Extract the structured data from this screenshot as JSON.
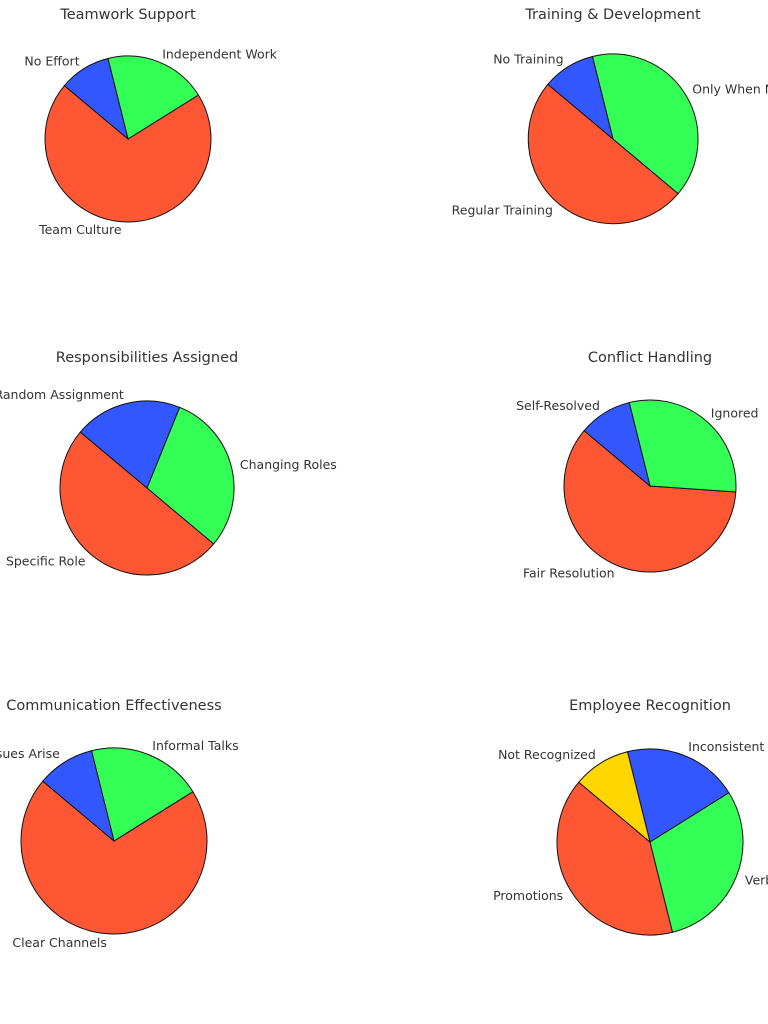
{
  "chart_data": [
    {
      "type": "pie",
      "title": "Teamwork Support",
      "start_angle": 140,
      "direction": "counterclockwise",
      "labels": [
        "Team Culture",
        "Independent Work",
        "No Effort"
      ],
      "values": [
        70,
        20,
        10
      ],
      "colors": [
        "#ff5733",
        "#33ff57",
        "#3357ff"
      ]
    },
    {
      "type": "pie",
      "title": "Training & Development",
      "start_angle": 140,
      "direction": "counterclockwise",
      "labels": [
        "Regular Training",
        "Only When Needed",
        "No Training"
      ],
      "values": [
        50,
        40,
        10
      ],
      "colors": [
        "#ff5733",
        "#33ff57",
        "#3357ff"
      ]
    },
    {
      "type": "pie",
      "title": "Responsibilities Assigned",
      "start_angle": 140,
      "direction": "counterclockwise",
      "labels": [
        "Specific Role",
        "Changing Roles",
        "Random Assignment"
      ],
      "values": [
        50,
        30,
        20
      ],
      "colors": [
        "#ff5733",
        "#33ff57",
        "#3357ff"
      ]
    },
    {
      "type": "pie",
      "title": "Conflict Handling",
      "start_angle": 140,
      "direction": "counterclockwise",
      "labels": [
        "Fair Resolution",
        "Ignored",
        "Self-Resolved"
      ],
      "values": [
        60,
        30,
        10
      ],
      "colors": [
        "#ff5733",
        "#33ff57",
        "#3357ff"
      ]
    },
    {
      "type": "pie",
      "title": "Communication Effectiveness",
      "start_angle": 140,
      "direction": "counterclockwise",
      "labels": [
        "Clear Channels",
        "Informal Talks",
        "Only When Issues Arise"
      ],
      "values": [
        70,
        20,
        10
      ],
      "colors": [
        "#ff5733",
        "#33ff57",
        "#3357ff"
      ]
    },
    {
      "type": "pie",
      "title": "Employee Recognition",
      "start_angle": 140,
      "direction": "counterclockwise",
      "labels": [
        "Promotions",
        "Verbal Praise",
        "Inconsistent",
        "Not Recognized"
      ],
      "values": [
        40,
        30,
        20,
        10
      ],
      "colors": [
        "#ff5733",
        "#33ff57",
        "#3357ff",
        "#ffd700"
      ]
    }
  ]
}
